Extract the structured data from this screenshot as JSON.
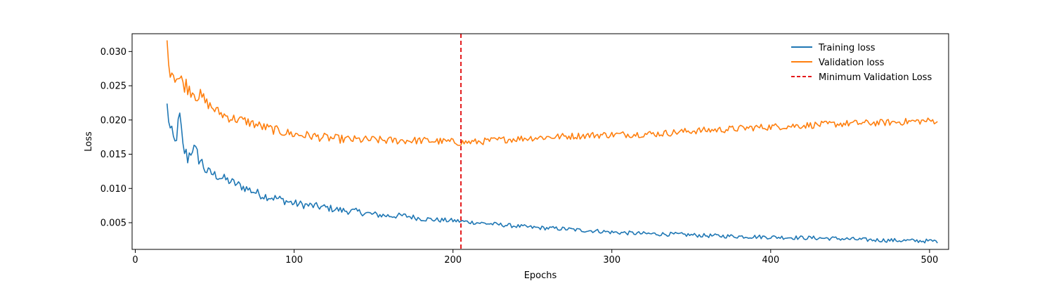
{
  "chart_data": {
    "type": "line",
    "title": "",
    "xlabel": "Epochs",
    "ylabel": "Loss",
    "xlim": [
      -2,
      512
    ],
    "ylim": [
      0.0011,
      0.0326
    ],
    "x_ticks": [
      0,
      100,
      200,
      300,
      400,
      500
    ],
    "y_ticks": [
      0.005,
      0.01,
      0.015,
      0.02,
      0.025,
      0.03
    ],
    "y_tick_labels": [
      "0.005",
      "0.010",
      "0.015",
      "0.020",
      "0.025",
      "0.030"
    ],
    "grid": false,
    "legend_position": "top-right",
    "x_start": 20,
    "x_end": 505,
    "series": [
      {
        "name": "Training loss",
        "color": "#1f77b4",
        "anchors": [
          [
            20,
            0.022
          ],
          [
            22,
            0.0185
          ],
          [
            25,
            0.0165
          ],
          [
            28,
            0.0205
          ],
          [
            30,
            0.016
          ],
          [
            33,
            0.0145
          ],
          [
            36,
            0.016
          ],
          [
            40,
            0.0145
          ],
          [
            45,
            0.0125
          ],
          [
            50,
            0.012
          ],
          [
            55,
            0.0115
          ],
          [
            60,
            0.011
          ],
          [
            65,
            0.0105
          ],
          [
            70,
            0.01
          ],
          [
            75,
            0.0095
          ],
          [
            80,
            0.009
          ],
          [
            90,
            0.0085
          ],
          [
            100,
            0.0078
          ],
          [
            110,
            0.0075
          ],
          [
            120,
            0.0072
          ],
          [
            130,
            0.0068
          ],
          [
            140,
            0.0066
          ],
          [
            150,
            0.0062
          ],
          [
            160,
            0.006
          ],
          [
            170,
            0.006
          ],
          [
            180,
            0.0056
          ],
          [
            190,
            0.0054
          ],
          [
            200,
            0.0053
          ],
          [
            210,
            0.0051
          ],
          [
            220,
            0.0049
          ],
          [
            230,
            0.0047
          ],
          [
            240,
            0.0045
          ],
          [
            250,
            0.0043
          ],
          [
            260,
            0.0042
          ],
          [
            270,
            0.0041
          ],
          [
            280,
            0.0039
          ],
          [
            290,
            0.0038
          ],
          [
            300,
            0.0036
          ],
          [
            320,
            0.0034
          ],
          [
            340,
            0.0033
          ],
          [
            360,
            0.0031
          ],
          [
            380,
            0.003
          ],
          [
            400,
            0.0029
          ],
          [
            420,
            0.0028
          ],
          [
            440,
            0.0027
          ],
          [
            460,
            0.0025
          ],
          [
            480,
            0.0024
          ],
          [
            505,
            0.0023
          ]
        ],
        "noise": [
          0.0008,
          0.0003
        ]
      },
      {
        "name": "Validation loss",
        "color": "#ff7f0e",
        "anchors": [
          [
            20,
            0.0305
          ],
          [
            22,
            0.0275
          ],
          [
            25,
            0.0265
          ],
          [
            30,
            0.0255
          ],
          [
            35,
            0.0245
          ],
          [
            40,
            0.0235
          ],
          [
            45,
            0.0225
          ],
          [
            50,
            0.0215
          ],
          [
            55,
            0.0208
          ],
          [
            60,
            0.0203
          ],
          [
            70,
            0.0198
          ],
          [
            80,
            0.019
          ],
          [
            90,
            0.0184
          ],
          [
            100,
            0.0179
          ],
          [
            110,
            0.0177
          ],
          [
            120,
            0.0174
          ],
          [
            130,
            0.0172
          ],
          [
            140,
            0.0171
          ],
          [
            150,
            0.0171
          ],
          [
            160,
            0.017
          ],
          [
            170,
            0.017
          ],
          [
            180,
            0.017
          ],
          [
            190,
            0.0169
          ],
          [
            200,
            0.0168
          ],
          [
            205,
            0.0167
          ],
          [
            215,
            0.0168
          ],
          [
            230,
            0.0171
          ],
          [
            250,
            0.0174
          ],
          [
            270,
            0.0176
          ],
          [
            290,
            0.0178
          ],
          [
            310,
            0.0179
          ],
          [
            330,
            0.018
          ],
          [
            350,
            0.0184
          ],
          [
            370,
            0.0186
          ],
          [
            390,
            0.0189
          ],
          [
            410,
            0.0191
          ],
          [
            430,
            0.0193
          ],
          [
            450,
            0.0195
          ],
          [
            470,
            0.0196
          ],
          [
            490,
            0.0198
          ],
          [
            505,
            0.0199
          ]
        ],
        "noise": [
          0.0008,
          0.0005
        ]
      }
    ],
    "vline": {
      "name": "Minimum Validation Loss",
      "x": 205,
      "color": "#e41a1c",
      "style": "dashed"
    }
  }
}
